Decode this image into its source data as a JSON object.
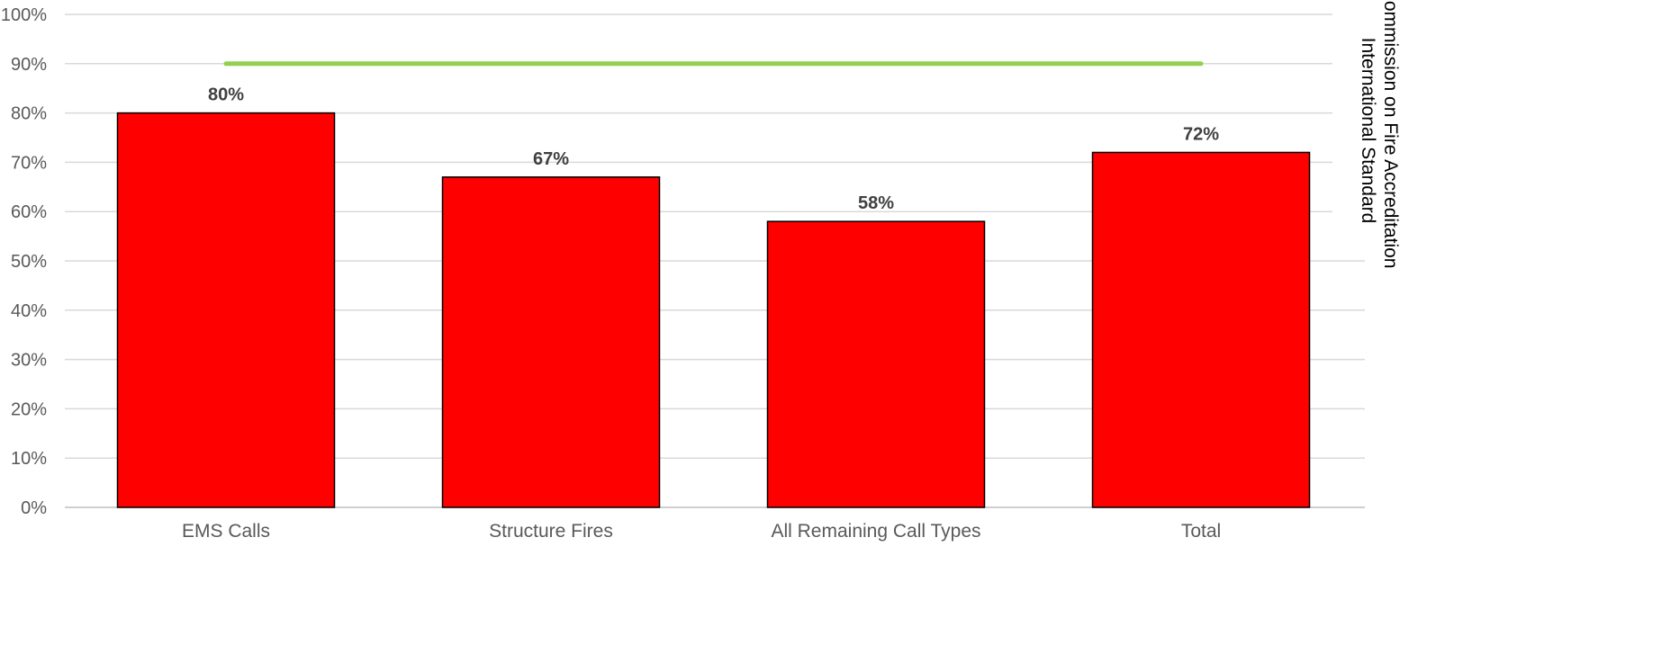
{
  "chart_data": {
    "type": "bar",
    "categories": [
      "EMS Calls",
      "Structure Fires",
      "All Remaining Call Types",
      "Total"
    ],
    "values": [
      80,
      67,
      58,
      72
    ],
    "data_labels": [
      "80%",
      "67%",
      "58%",
      "72%"
    ],
    "title": "",
    "xlabel": "",
    "ylabel": "",
    "ylim": [
      0,
      100
    ],
    "y_ticks": [
      "0%",
      "10%",
      "20%",
      "30%",
      "40%",
      "50%",
      "60%",
      "70%",
      "80%",
      "90%",
      "100%"
    ],
    "grid": true,
    "bar_color": "#ff0000",
    "bar_outline": "#000000",
    "reference_line": {
      "value": 90,
      "color": "#92d050",
      "label_line1": "Commission on Fire Accreditation",
      "label_line2": "International Standard"
    }
  }
}
